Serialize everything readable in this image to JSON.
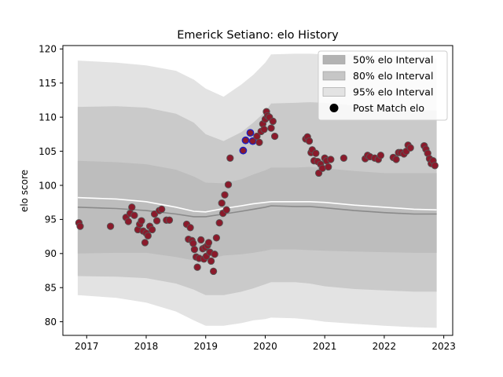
{
  "chart_data": {
    "type": "scatter",
    "title": "Emerick Setiano: elo History",
    "xlabel": "",
    "ylabel": "elo score",
    "xlim": [
      2016.6,
      2023.15
    ],
    "ylim": [
      78.0,
      120.5
    ],
    "xticks": [
      2017,
      2018,
      2019,
      2020,
      2021,
      2022,
      2023
    ],
    "yticks": [
      80,
      85,
      90,
      95,
      100,
      105,
      110,
      115,
      120
    ],
    "grid": false,
    "legend_position": "top-right",
    "legend": [
      {
        "label": "50% elo Interval",
        "kind": "band",
        "color": "#b3b3b3"
      },
      {
        "label": "80% elo Interval",
        "kind": "band",
        "color": "#c6c6c6"
      },
      {
        "label": "95% elo Interval",
        "kind": "band",
        "color": "#e3e3e3"
      },
      {
        "label": "Post Match elo",
        "kind": "marker",
        "color": "#000000"
      }
    ],
    "colors": {
      "band95": "#e3e3e3",
      "band80": "#cacaca",
      "band50": "#bdbdbd",
      "mean_line": "#ffffff",
      "median_line": "#8a8a8a",
      "point_fill": "#8b1a2b",
      "point_edge": "#555555",
      "point_edge_highlight": "#2020c0"
    },
    "bands": {
      "x": [
        2016.85,
        2017.5,
        2018.0,
        2018.5,
        2018.8,
        2019.0,
        2019.3,
        2019.6,
        2019.8,
        2020.0,
        2020.1,
        2020.5,
        2020.75,
        2021.0,
        2021.5,
        2022.0,
        2022.5,
        2022.88
      ],
      "p95_upper": [
        118.3,
        118.0,
        117.6,
        116.8,
        115.5,
        114.2,
        113.0,
        114.8,
        116.2,
        118.0,
        119.2,
        119.3,
        119.3,
        119.2,
        119.2,
        119.0,
        118.7,
        118.6
      ],
      "p80_upper": [
        111.5,
        111.6,
        111.4,
        110.5,
        109.2,
        107.5,
        106.5,
        107.8,
        109.2,
        110.8,
        112.0,
        112.1,
        112.2,
        112.1,
        111.7,
        111.3,
        111.0,
        111.0
      ],
      "p50_upper": [
        103.6,
        103.4,
        103.1,
        102.3,
        101.3,
        100.4,
        100.3,
        100.9,
        101.6,
        102.2,
        102.6,
        102.6,
        102.7,
        102.5,
        102.1,
        101.8,
        101.8,
        101.8
      ],
      "p50_lower": [
        90.0,
        90.1,
        90.1,
        89.5,
        89.0,
        89.1,
        89.7,
        89.9,
        90.1,
        90.4,
        90.6,
        90.6,
        90.5,
        90.4,
        90.3,
        90.2,
        90.1,
        90.1
      ],
      "p80_lower": [
        86.7,
        86.6,
        86.4,
        85.6,
        84.7,
        83.9,
        83.9,
        84.4,
        84.9,
        85.5,
        85.8,
        85.8,
        85.6,
        85.2,
        84.8,
        84.6,
        84.4,
        84.4
      ],
      "p95_lower": [
        83.9,
        83.5,
        82.8,
        81.5,
        80.2,
        79.4,
        79.4,
        79.8,
        80.2,
        80.4,
        80.6,
        80.5,
        80.3,
        80.0,
        79.7,
        79.4,
        79.2,
        79.1
      ],
      "mean": [
        98.2,
        98.0,
        97.6,
        96.8,
        96.2,
        96.1,
        96.6,
        97.0,
        97.3,
        97.5,
        97.6,
        97.6,
        97.6,
        97.5,
        97.1,
        96.8,
        96.5,
        96.4
      ],
      "median": [
        96.8,
        96.6,
        96.3,
        95.8,
        95.4,
        95.4,
        95.8,
        96.2,
        96.5,
        96.8,
        97.0,
        96.9,
        96.9,
        96.7,
        96.3,
        96.0,
        95.8,
        95.8
      ]
    },
    "points": [
      {
        "x": 2016.87,
        "y": 94.5
      },
      {
        "x": 2016.89,
        "y": 94.0
      },
      {
        "x": 2017.4,
        "y": 94.0
      },
      {
        "x": 2017.66,
        "y": 95.3
      },
      {
        "x": 2017.7,
        "y": 94.7
      },
      {
        "x": 2017.73,
        "y": 95.9
      },
      {
        "x": 2017.76,
        "y": 96.8
      },
      {
        "x": 2017.8,
        "y": 95.6
      },
      {
        "x": 2017.86,
        "y": 93.5
      },
      {
        "x": 2017.89,
        "y": 94.3
      },
      {
        "x": 2017.92,
        "y": 94.8
      },
      {
        "x": 2017.95,
        "y": 93.3
      },
      {
        "x": 2017.98,
        "y": 91.6
      },
      {
        "x": 2018.0,
        "y": 93.0
      },
      {
        "x": 2018.03,
        "y": 92.6
      },
      {
        "x": 2018.06,
        "y": 94.0
      },
      {
        "x": 2018.1,
        "y": 93.5
      },
      {
        "x": 2018.14,
        "y": 95.8
      },
      {
        "x": 2018.18,
        "y": 94.8
      },
      {
        "x": 2018.22,
        "y": 96.3
      },
      {
        "x": 2018.26,
        "y": 96.5
      },
      {
        "x": 2018.34,
        "y": 94.9
      },
      {
        "x": 2018.39,
        "y": 94.9
      },
      {
        "x": 2018.68,
        "y": 94.3
      },
      {
        "x": 2018.71,
        "y": 92.1
      },
      {
        "x": 2018.74,
        "y": 93.8
      },
      {
        "x": 2018.77,
        "y": 91.9
      },
      {
        "x": 2018.79,
        "y": 91.5
      },
      {
        "x": 2018.81,
        "y": 90.6
      },
      {
        "x": 2018.84,
        "y": 89.5
      },
      {
        "x": 2018.86,
        "y": 88.0
      },
      {
        "x": 2018.89,
        "y": 89.3
      },
      {
        "x": 2018.92,
        "y": 92.0
      },
      {
        "x": 2018.95,
        "y": 90.7
      },
      {
        "x": 2018.97,
        "y": 89.2
      },
      {
        "x": 2018.99,
        "y": 90.9
      },
      {
        "x": 2019.01,
        "y": 89.6
      },
      {
        "x": 2019.03,
        "y": 91.2
      },
      {
        "x": 2019.05,
        "y": 91.6
      },
      {
        "x": 2019.07,
        "y": 90.2
      },
      {
        "x": 2019.09,
        "y": 88.9
      },
      {
        "x": 2019.13,
        "y": 87.4
      },
      {
        "x": 2019.15,
        "y": 89.9
      },
      {
        "x": 2019.18,
        "y": 92.3
      },
      {
        "x": 2019.23,
        "y": 94.5
      },
      {
        "x": 2019.27,
        "y": 97.4
      },
      {
        "x": 2019.29,
        "y": 95.9
      },
      {
        "x": 2019.32,
        "y": 98.6
      },
      {
        "x": 2019.35,
        "y": 96.4
      },
      {
        "x": 2019.38,
        "y": 100.1
      },
      {
        "x": 2019.41,
        "y": 104.0
      },
      {
        "x": 2019.63,
        "y": 105.1,
        "hl": true
      },
      {
        "x": 2019.67,
        "y": 106.6,
        "hl": true
      },
      {
        "x": 2019.75,
        "y": 107.7,
        "hl": true
      },
      {
        "x": 2019.79,
        "y": 106.5,
        "hl": true
      },
      {
        "x": 2019.86,
        "y": 107.2
      },
      {
        "x": 2019.9,
        "y": 106.3
      },
      {
        "x": 2019.93,
        "y": 107.9
      },
      {
        "x": 2019.96,
        "y": 109.0
      },
      {
        "x": 2019.98,
        "y": 108.2
      },
      {
        "x": 2020.0,
        "y": 109.7
      },
      {
        "x": 2020.02,
        "y": 110.8
      },
      {
        "x": 2020.04,
        "y": 110.2
      },
      {
        "x": 2020.07,
        "y": 110.0
      },
      {
        "x": 2020.1,
        "y": 108.4
      },
      {
        "x": 2020.13,
        "y": 109.4
      },
      {
        "x": 2020.16,
        "y": 107.2
      },
      {
        "x": 2020.68,
        "y": 106.8
      },
      {
        "x": 2020.71,
        "y": 107.1
      },
      {
        "x": 2020.74,
        "y": 106.5
      },
      {
        "x": 2020.77,
        "y": 104.8
      },
      {
        "x": 2020.79,
        "y": 105.2
      },
      {
        "x": 2020.82,
        "y": 103.6
      },
      {
        "x": 2020.85,
        "y": 104.7
      },
      {
        "x": 2020.88,
        "y": 103.5
      },
      {
        "x": 2020.9,
        "y": 101.8
      },
      {
        "x": 2020.93,
        "y": 103.1
      },
      {
        "x": 2020.96,
        "y": 102.5
      },
      {
        "x": 2021.0,
        "y": 104.0
      },
      {
        "x": 2021.03,
        "y": 103.6
      },
      {
        "x": 2021.06,
        "y": 102.7
      },
      {
        "x": 2021.1,
        "y": 103.8
      },
      {
        "x": 2021.32,
        "y": 104.0
      },
      {
        "x": 2021.68,
        "y": 103.9
      },
      {
        "x": 2021.72,
        "y": 104.4
      },
      {
        "x": 2021.76,
        "y": 104.2
      },
      {
        "x": 2021.84,
        "y": 104.0
      },
      {
        "x": 2021.9,
        "y": 103.8
      },
      {
        "x": 2021.94,
        "y": 104.4
      },
      {
        "x": 2022.15,
        "y": 104.1
      },
      {
        "x": 2022.2,
        "y": 103.8
      },
      {
        "x": 2022.24,
        "y": 104.8
      },
      {
        "x": 2022.28,
        "y": 104.8
      },
      {
        "x": 2022.33,
        "y": 104.6
      },
      {
        "x": 2022.37,
        "y": 105.0
      },
      {
        "x": 2022.4,
        "y": 105.9
      },
      {
        "x": 2022.44,
        "y": 105.5
      },
      {
        "x": 2022.67,
        "y": 105.8
      },
      {
        "x": 2022.7,
        "y": 105.3
      },
      {
        "x": 2022.73,
        "y": 104.7
      },
      {
        "x": 2022.76,
        "y": 103.9
      },
      {
        "x": 2022.79,
        "y": 103.2
      },
      {
        "x": 2022.82,
        "y": 103.6
      },
      {
        "x": 2022.85,
        "y": 102.9
      }
    ]
  }
}
